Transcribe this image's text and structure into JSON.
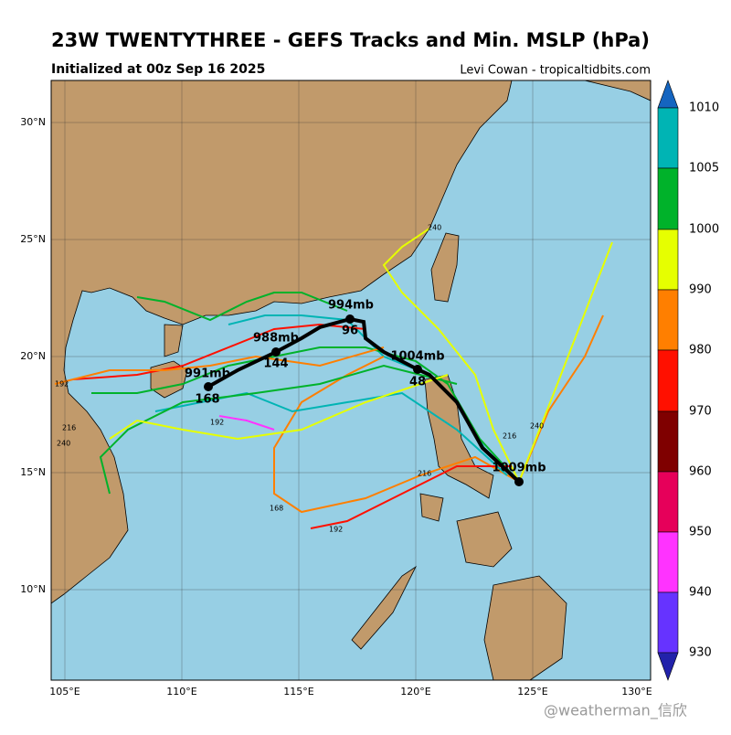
{
  "title": "23W TWENTYTHREE - GEFS Tracks and Min. MSLP (hPa)",
  "subtitle": "Initialized at 00z Sep 16 2025",
  "credit": "Levi Cowan - tropicaltidbits.com",
  "watermark": "@weatherman_信欣",
  "map": {
    "lon_labels": [
      "105°E",
      "110°E",
      "115°E",
      "120°E",
      "125°E",
      "130°E"
    ],
    "lat_labels": [
      "30°N",
      "25°N",
      "20°N",
      "15°N",
      "10°N"
    ]
  },
  "colorbar": {
    "levels": [
      1010,
      1005,
      1000,
      990,
      980,
      970,
      960,
      950,
      940,
      930
    ]
  },
  "mean_track": {
    "labels": [
      "1009mb",
      "1004mb",
      "48",
      "994mb",
      "96",
      "988mb",
      "144",
      "991mb",
      "168"
    ]
  },
  "member_labels": [
    "192",
    "216",
    "240",
    "240",
    "216",
    "192",
    "168",
    "216",
    "240",
    "192"
  ]
}
